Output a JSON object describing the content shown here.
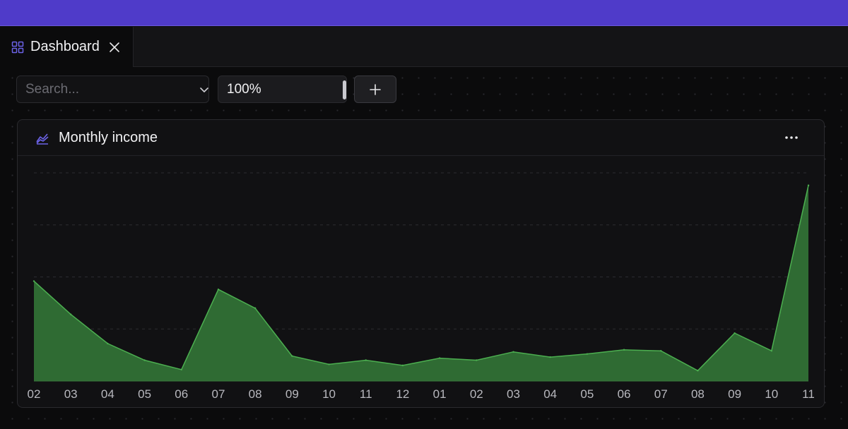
{
  "tab": {
    "label": "Dashboard",
    "icon": "dashboard-grid-icon",
    "close_icon": "close-icon"
  },
  "toolbar": {
    "search_placeholder": "Search...",
    "search_value": "",
    "zoom_value": "100%",
    "add_icon": "plus-icon"
  },
  "panel": {
    "title": "Monthly income",
    "icon": "area-chart-icon",
    "menu_icon": "more-horizontal-icon"
  },
  "colors": {
    "top_bar": "#4f3bc9",
    "accent_icon": "#6c63e8",
    "area_fill": "#2f6b33",
    "area_line": "#4caf50"
  },
  "chart_data": {
    "type": "area",
    "categories": [
      "02",
      "03",
      "04",
      "05",
      "06",
      "07",
      "08",
      "09",
      "10",
      "11",
      "12",
      "01",
      "02",
      "03",
      "04",
      "05",
      "06",
      "07",
      "08",
      "09",
      "10",
      "11"
    ],
    "values": [
      48,
      32,
      18,
      10,
      5.5,
      44,
      35,
      12,
      8,
      10,
      7.5,
      11,
      10,
      14,
      11.5,
      13,
      15,
      14.5,
      5,
      23,
      14.5,
      94
    ],
    "ylim": [
      0,
      100
    ],
    "grid": true,
    "title": "Monthly income",
    "xlabel": "",
    "ylabel": ""
  }
}
